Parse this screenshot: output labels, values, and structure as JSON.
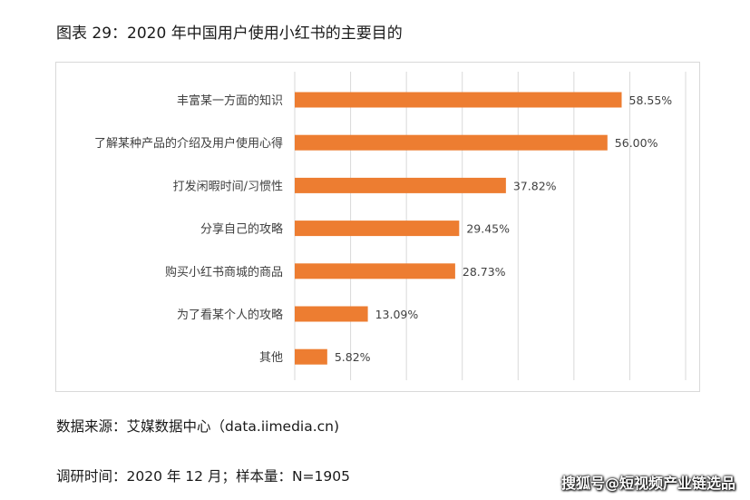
{
  "figure": {
    "title": "图表 29：2020 年中国用户使用小红书的主要目的",
    "source": "数据来源：艾媒数据中心（data.iimedia.cn)",
    "survey": "调研时间：2020 年 12 月；样本量：N=1905",
    "watermark": "搜狐号@短视频产业链选品"
  },
  "colors": {
    "bar": "#ED7D31",
    "grid": "#d9d9d9",
    "label": "#404040"
  },
  "chart_data": {
    "type": "bar",
    "orientation": "horizontal",
    "categories": [
      "丰富某一方面的知识",
      "了解某种产品的介绍及用户使用心得",
      "打发闲暇时间/习惯性",
      "分享自己的攻略",
      "购买小红书商城的商品",
      "为了看某个人的攻略",
      "其他"
    ],
    "values": [
      58.55,
      56.0,
      37.82,
      29.45,
      28.73,
      13.09,
      5.82
    ],
    "value_labels": [
      "58.55%",
      "56.00%",
      "37.82%",
      "29.45%",
      "28.73%",
      "13.09%",
      "5.82%"
    ],
    "xlim": [
      0,
      70
    ],
    "grid": true,
    "legend": "none"
  }
}
